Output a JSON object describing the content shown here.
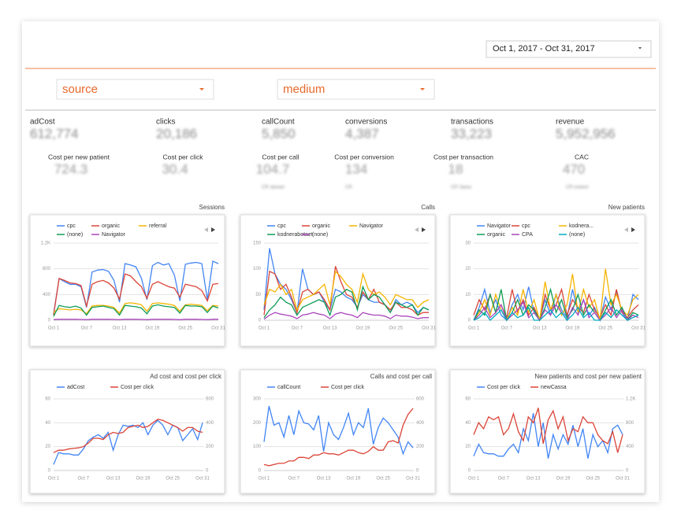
{
  "date_range": "Oct 1, 2017 - Oct 31, 2017",
  "filters": [
    "source",
    "medium"
  ],
  "scorecards": [
    {
      "label": "adCost",
      "value": "612,774"
    },
    {
      "label": "clicks",
      "value": "20,186"
    },
    {
      "label": "callCount",
      "value": "5,850"
    },
    {
      "label": "conversions",
      "value": "4,387"
    },
    {
      "label": "transactions",
      "value": "33,223"
    },
    {
      "label": "revenue",
      "value": "5,952,956"
    }
  ],
  "scorecards2": [
    {
      "label": "Cost per new patient",
      "value": "724.3"
    },
    {
      "label": "Cost per click",
      "value": "30.4"
    },
    {
      "label": "Cost per call",
      "value": "104.7"
    },
    {
      "label": "Cost per conversion",
      "value": "134"
    },
    {
      "label": "Cost per transaction",
      "value": "18"
    },
    {
      "label": "CAC",
      "value": "470"
    }
  ],
  "cr_labels": [
    "CR звонки",
    "CR",
    "CR Заказ",
    "CR клиент"
  ],
  "chart_data": [
    {
      "type": "line",
      "title": "Sessions",
      "categories": [
        "Oct 1",
        null,
        null,
        null,
        null,
        null,
        "Oct 7",
        null,
        null,
        null,
        null,
        null,
        "Oct 13",
        null,
        null,
        null,
        null,
        null,
        "Oct 19",
        null,
        null,
        null,
        null,
        null,
        "Oct 25",
        null,
        null,
        null,
        null,
        null,
        "Oct 31"
      ],
      "ylim": [
        0,
        1200
      ],
      "yticks": [
        0,
        400,
        800,
        {
          "value": 1200,
          "label": "1.2K"
        }
      ],
      "grid": true,
      "series": [
        {
          "name": "cpc",
          "color": "#4285f4",
          "values": [
            100,
            650,
            600,
            560,
            560,
            520,
            200,
            750,
            780,
            790,
            760,
            620,
            280,
            880,
            860,
            830,
            650,
            320,
            850,
            900,
            860,
            880,
            700,
            300,
            870,
            890,
            900,
            880,
            320,
            920,
            880
          ]
        },
        {
          "name": "organic",
          "color": "#db4437",
          "values": [
            80,
            650,
            620,
            580,
            570,
            540,
            220,
            560,
            600,
            620,
            580,
            500,
            330,
            720,
            690,
            600,
            520,
            340,
            560,
            600,
            560,
            520,
            500,
            360,
            560,
            540,
            520,
            460,
            300,
            560,
            570
          ]
        },
        {
          "name": "referral",
          "color": "#f4b400",
          "values": [
            120,
            180,
            170,
            160,
            170,
            160,
            100,
            220,
            230,
            230,
            220,
            200,
            110,
            260,
            270,
            260,
            240,
            140,
            260,
            270,
            260,
            250,
            230,
            140,
            240,
            250,
            240,
            230,
            150,
            230,
            220
          ]
        },
        {
          "name": "(none)",
          "color": "#0f9d58",
          "values": [
            60,
            230,
            210,
            200,
            220,
            190,
            80,
            200,
            210,
            220,
            200,
            180,
            80,
            230,
            220,
            210,
            190,
            100,
            220,
            240,
            220,
            210,
            200,
            110,
            230,
            220,
            220,
            210,
            120,
            220,
            190
          ]
        },
        {
          "name": "Navigator",
          "color": "#ab47bc",
          "values": [
            10,
            15,
            15,
            15,
            15,
            12,
            8,
            15,
            15,
            15,
            15,
            12,
            8,
            15,
            15,
            15,
            12,
            8,
            15,
            15,
            15,
            15,
            12,
            8,
            15,
            15,
            15,
            12,
            8,
            15,
            15
          ]
        }
      ]
    },
    {
      "type": "line",
      "title": "Calls",
      "categories": [
        "Oct 1",
        null,
        null,
        null,
        null,
        null,
        "Oct 7",
        null,
        null,
        null,
        null,
        null,
        "Oct 13",
        null,
        null,
        null,
        null,
        null,
        "Oct 19",
        null,
        null,
        null,
        null,
        null,
        "Oct 25",
        null,
        null,
        null,
        null,
        null,
        "Oct 31"
      ],
      "ylim": [
        0,
        150
      ],
      "yticks": [
        0,
        50,
        100,
        150
      ],
      "grid": true,
      "series": [
        {
          "name": "cpc",
          "color": "#4285f4",
          "values": [
            20,
            140,
            90,
            70,
            60,
            40,
            15,
            100,
            60,
            50,
            55,
            35,
            20,
            60,
            55,
            45,
            40,
            25,
            50,
            40,
            35,
            35,
            30,
            15,
            40,
            30,
            35,
            30,
            15,
            25,
            20
          ]
        },
        {
          "name": "organic",
          "color": "#db4437",
          "values": [
            10,
            95,
            90,
            60,
            70,
            45,
            15,
            55,
            60,
            50,
            55,
            40,
            20,
            105,
            75,
            50,
            45,
            25,
            55,
            40,
            60,
            35,
            30,
            20,
            35,
            25,
            25,
            20,
            10,
            15,
            15
          ]
        },
        {
          "name": "Navigator",
          "color": "#f4b400",
          "values": [
            30,
            60,
            55,
            70,
            50,
            60,
            20,
            40,
            45,
            50,
            60,
            70,
            30,
            95,
            85,
            70,
            60,
            35,
            90,
            60,
            50,
            55,
            45,
            30,
            50,
            45,
            40,
            40,
            25,
            35,
            40
          ]
        },
        {
          "name": "kodnerabotaet",
          "color": "#0f9d58",
          "values": [
            5,
            20,
            30,
            45,
            35,
            30,
            10,
            25,
            30,
            35,
            40,
            35,
            10,
            45,
            50,
            60,
            55,
            20,
            65,
            40,
            50,
            45,
            30,
            15,
            35,
            30,
            25,
            30,
            10,
            25,
            20
          ]
        },
        {
          "name": "(none)",
          "color": "#ab47bc",
          "values": [
            2,
            10,
            15,
            12,
            10,
            8,
            3,
            10,
            12,
            15,
            12,
            10,
            3,
            12,
            15,
            12,
            10,
            5,
            15,
            12,
            10,
            10,
            8,
            3,
            10,
            8,
            8,
            6,
            3,
            5,
            5
          ]
        }
      ]
    },
    {
      "type": "line",
      "title": "New patients",
      "categories": [
        "Oct 1",
        null,
        null,
        null,
        null,
        null,
        "Oct 7",
        null,
        null,
        null,
        null,
        null,
        "Oct 13",
        null,
        null,
        null,
        null,
        null,
        "Oct 19",
        null,
        null,
        null,
        null,
        null,
        "Oct 25",
        null,
        null,
        null,
        null,
        null,
        "Oct 31"
      ],
      "ylim": [
        0,
        30
      ],
      "yticks": [
        0,
        10,
        20,
        30
      ],
      "grid": true,
      "series": [
        {
          "name": "Navigator",
          "color": "#4285f4",
          "values": [
            0,
            5,
            12,
            3,
            8,
            2,
            0,
            6,
            10,
            4,
            13,
            3,
            0,
            8,
            2,
            10,
            4,
            1,
            12,
            3,
            8,
            2,
            5,
            0,
            9,
            4,
            11,
            3,
            0,
            10,
            8
          ]
        },
        {
          "name": "cpc",
          "color": "#db4437",
          "values": [
            2,
            8,
            4,
            10,
            3,
            6,
            1,
            12,
            3,
            8,
            2,
            5,
            0,
            10,
            4,
            6,
            12,
            2,
            8,
            5,
            3,
            10,
            4,
            1,
            6,
            2,
            12,
            3,
            1,
            4,
            6
          ]
        },
        {
          "name": "kodnera...",
          "color": "#f4b400",
          "values": [
            0,
            3,
            8,
            2,
            10,
            4,
            0,
            5,
            2,
            12,
            3,
            8,
            0,
            15,
            4,
            10,
            2,
            6,
            18,
            3,
            12,
            5,
            8,
            0,
            20,
            6,
            10,
            4,
            2,
            8,
            10
          ]
        },
        {
          "name": "organic",
          "color": "#0f9d58",
          "values": [
            0,
            4,
            2,
            10,
            3,
            12,
            0,
            3,
            8,
            2,
            6,
            4,
            0,
            5,
            12,
            3,
            8,
            1,
            4,
            10,
            2,
            6,
            3,
            0,
            4,
            8,
            2,
            5,
            0,
            3,
            2
          ]
        },
        {
          "name": "CPA",
          "color": "#ab47bc",
          "values": [
            0,
            2,
            5,
            1,
            3,
            6,
            0,
            2,
            4,
            7,
            1,
            3,
            0,
            4,
            2,
            6,
            3,
            0,
            5,
            2,
            8,
            1,
            3,
            0,
            2,
            5,
            1,
            4,
            0,
            2,
            1
          ]
        },
        {
          "name": "(none)",
          "color": "#00acc1",
          "values": [
            0,
            1,
            3,
            0,
            2,
            4,
            0,
            3,
            1,
            2,
            5,
            0,
            0,
            2,
            4,
            1,
            3,
            0,
            2,
            5,
            1,
            3,
            0,
            0,
            3,
            1,
            4,
            2,
            0,
            1,
            2
          ]
        }
      ]
    },
    {
      "type": "line",
      "title": "Ad cost and cost per click",
      "categories": [
        "Oct 1",
        null,
        null,
        null,
        null,
        null,
        "Oct 7",
        null,
        null,
        null,
        null,
        null,
        "Oct 13",
        null,
        null,
        null,
        null,
        null,
        "Oct 19",
        null,
        null,
        null,
        null,
        null,
        "Oct 25",
        null,
        null,
        null,
        null,
        null,
        "Oct 31"
      ],
      "ylim": [
        0,
        60
      ],
      "yticks": [
        0,
        20,
        40,
        60
      ],
      "y2lim": [
        0,
        600
      ],
      "y2ticks": [
        0,
        200,
        400,
        600
      ],
      "grid": true,
      "series": [
        {
          "name": "adCost",
          "color": "#4285f4",
          "values": [
            5,
            15,
            14,
            14,
            13,
            13,
            18,
            25,
            28,
            30,
            27,
            32,
            17,
            30,
            38,
            37,
            38,
            36,
            40,
            30,
            38,
            42,
            38,
            30,
            38,
            36,
            25,
            30,
            35,
            26,
            40
          ]
        },
        {
          "name": "Cost per click",
          "color": "#db4437",
          "axis": "y2",
          "values": [
            150,
            170,
            170,
            180,
            185,
            190,
            200,
            230,
            270,
            270,
            260,
            300,
            320,
            310,
            320,
            360,
            370,
            380,
            360,
            370,
            400,
            430,
            420,
            400,
            380,
            360,
            330,
            360,
            360,
            330,
            320
          ]
        }
      ]
    },
    {
      "type": "line",
      "title": "Calls and cost per call",
      "categories": [
        "Oct 1",
        null,
        null,
        null,
        null,
        null,
        "Oct 7",
        null,
        null,
        null,
        null,
        null,
        "Oct 13",
        null,
        null,
        null,
        null,
        null,
        "Oct 19",
        null,
        null,
        null,
        null,
        null,
        "Oct 25",
        null,
        null,
        null,
        null,
        null,
        "Oct 31"
      ],
      "ylim": [
        0,
        300
      ],
      "yticks": [
        0,
        100,
        200,
        300
      ],
      "y2lim": [
        0,
        600
      ],
      "y2ticks": [
        0,
        200,
        400,
        600
      ],
      "grid": true,
      "series": [
        {
          "name": "callCount",
          "color": "#4285f4",
          "values": [
            120,
            270,
            190,
            200,
            140,
            230,
            150,
            250,
            200,
            195,
            170,
            230,
            80,
            200,
            150,
            130,
            180,
            240,
            150,
            200,
            180,
            260,
            110,
            180,
            220,
            200,
            170,
            140,
            70,
            120,
            95
          ]
        },
        {
          "name": "Cost per click",
          "color": "#db4437",
          "axis": "y2",
          "values": [
            50,
            40,
            50,
            60,
            60,
            80,
            80,
            110,
            110,
            100,
            130,
            130,
            150,
            140,
            140,
            130,
            150,
            170,
            170,
            150,
            140,
            160,
            200,
            170,
            170,
            240,
            250,
            230,
            380,
            470,
            520
          ]
        }
      ]
    },
    {
      "type": "line",
      "title": "New patients and cost per new patient",
      "categories": [
        "Oct 1",
        null,
        null,
        null,
        null,
        null,
        "Oct 7",
        null,
        null,
        null,
        null,
        null,
        "Oct 13",
        null,
        null,
        null,
        null,
        null,
        "Oct 19",
        null,
        null,
        null,
        null,
        null,
        "Oct 25",
        null,
        null,
        null,
        null,
        null,
        "Oct 31"
      ],
      "ylim": [
        0,
        60
      ],
      "yticks": [
        0,
        20,
        40,
        60
      ],
      "y2lim": [
        0,
        1200
      ],
      "y2ticks": [
        0,
        400,
        800,
        {
          "value": 1200,
          "label": "1.2K"
        }
      ],
      "grid": true,
      "series": [
        {
          "name": "Cost per click",
          "color": "#4285f4",
          "values": [
            12,
            22,
            15,
            14,
            14,
            12,
            12,
            18,
            22,
            15,
            35,
            25,
            48,
            20,
            40,
            10,
            30,
            18,
            30,
            22,
            38,
            20,
            35,
            10,
            30,
            20,
            25,
            15,
            35,
            38,
            30
          ]
        },
        {
          "name": "newCassa",
          "color": "#db4437",
          "axis": "y2",
          "values": [
            600,
            800,
            700,
            900,
            850,
            900,
            600,
            700,
            950,
            650,
            500,
            900,
            800,
            1050,
            450,
            850,
            1000,
            700,
            900,
            500,
            700,
            650,
            900,
            800,
            800,
            600,
            500,
            450,
            650,
            300,
            600
          ]
        }
      ]
    }
  ]
}
